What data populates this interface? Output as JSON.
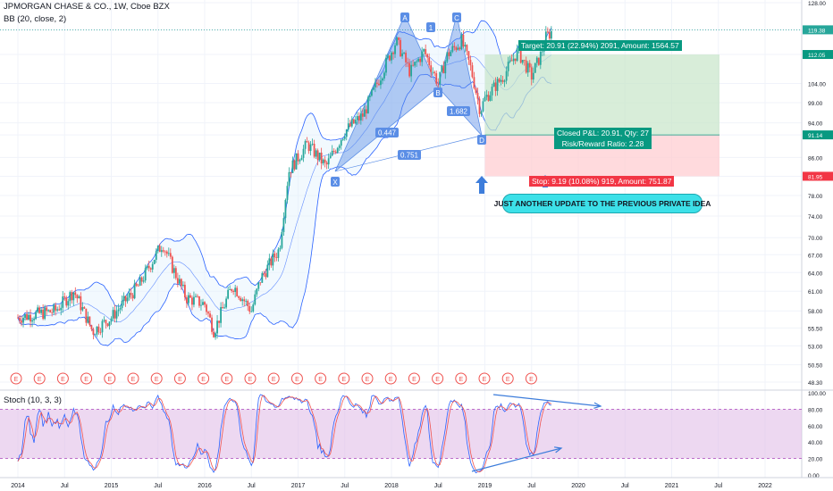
{
  "header": {
    "symbol_line": "JPMORGAN CHASE & CO., 1W, Cboe BZX",
    "indicator_bb": "BB (20, close, 2)",
    "indicator_stoch": "Stoch (10, 3, 3)"
  },
  "price_axis": {
    "ticks": [
      "128.00",
      "119.38",
      "112.05",
      "104.00",
      "99.00",
      "94.00",
      "91.14",
      "86.00",
      "81.95",
      "78.00",
      "74.00",
      "70.00",
      "67.00",
      "64.00",
      "61.00",
      "58.00",
      "55.50",
      "53.00",
      "50.50",
      "48.30"
    ],
    "highlight_labels": [
      {
        "text": "119.38",
        "color": "#26a69a"
      },
      {
        "text": "112.05",
        "color": "#089981"
      },
      {
        "text": "91.14",
        "color": "#089981"
      },
      {
        "text": "81.95",
        "color": "#f23645"
      }
    ]
  },
  "stoch_axis": {
    "ticks": [
      "100.00",
      "80.00",
      "60.00",
      "40.00",
      "20.00",
      "0.00"
    ]
  },
  "time_axis": {
    "labels": [
      "2014",
      "Jul",
      "2015",
      "Jul",
      "2016",
      "Jul",
      "2017",
      "Jul",
      "2018",
      "Jul",
      "2019",
      "Jul",
      "2020",
      "Jul",
      "2021",
      "Jul",
      "2022"
    ]
  },
  "pattern_labels": {
    "A": "A",
    "B": "B",
    "C": "C",
    "D": "D",
    "X": "X",
    "one": "1",
    "r1": "0.447",
    "r2": "0.751",
    "r3": "1.682"
  },
  "trade": {
    "target_label": "Target: 20.91 (22.94%) 2091, Amount: 1564.57",
    "closed_label": "Closed P&L: 20.91, Qty: 27",
    "rr_label": "Risk/Reward Ratio: 2.28",
    "stop_label": "Stop: 9.19 (10.08%) 919, Amount: 751.87"
  },
  "callout": "JUST ANOTHER UPDATE TO THE PREVIOUS PRIVATE IDEA",
  "earnings_marker": "E",
  "colors": {
    "up": "#26a69a",
    "down": "#ef5350",
    "bb": "#2962ff",
    "stoch_k": "#2962ff",
    "stoch_d": "#ef5350",
    "stoch_fill": "#e1bee7",
    "target_zone": "#c8e6c9",
    "stop_zone": "#ffcdd2",
    "harmonic": "#5b8ee6"
  }
}
